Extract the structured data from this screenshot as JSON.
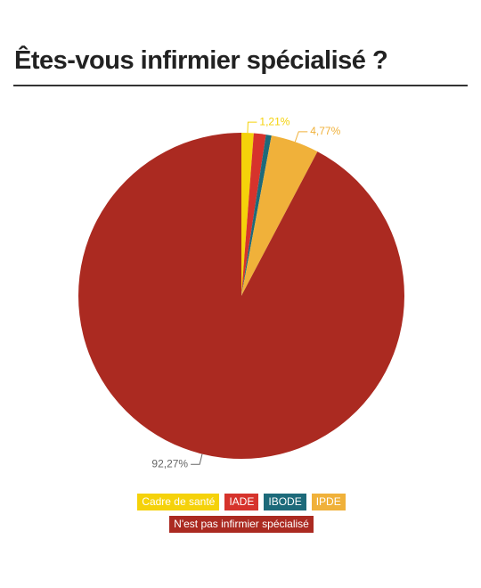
{
  "chart_data": {
    "type": "pie",
    "title": "Êtes-vous infirmier spécialisé ?",
    "categories": [
      "Cadre de santé",
      "IADE",
      "IBODE",
      "IPDE",
      "N'est pas infirmier spécialisé"
    ],
    "values": [
      1.21,
      1.2,
      0.55,
      4.77,
      92.27
    ],
    "value_labels": [
      "1,21%",
      null,
      null,
      "4,77%",
      "92,27%"
    ],
    "colors": [
      "#f5d20a",
      "#d6332c",
      "#1d6a7a",
      "#f0b13a",
      "#ab2a21"
    ]
  }
}
